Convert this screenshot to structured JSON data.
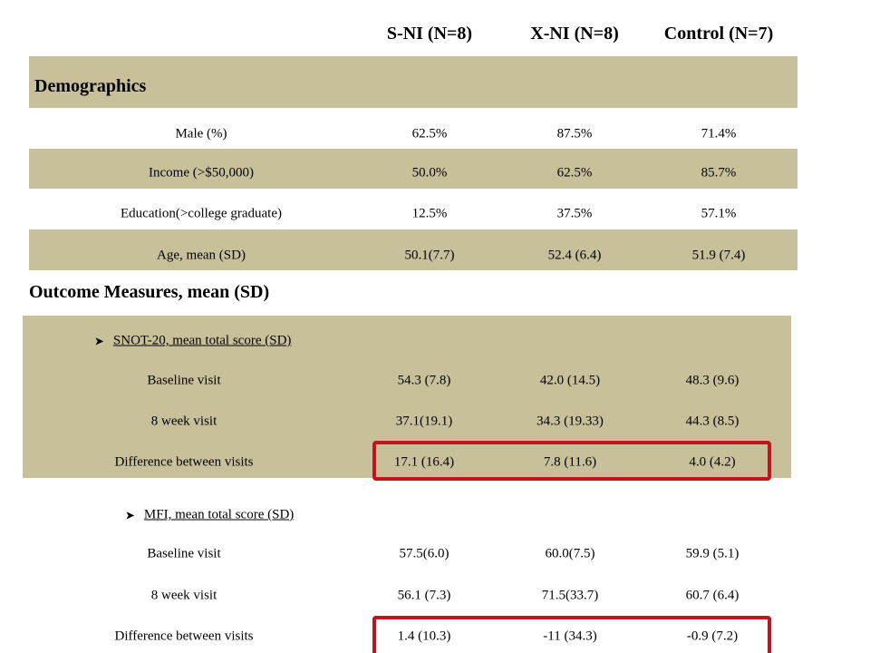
{
  "columns": [
    "S-NI (N=8)",
    "X-NI (N=8)",
    "Control (N=7)"
  ],
  "demographics": {
    "title": "Demographics",
    "rows": [
      {
        "label": "Male (%)",
        "values": [
          "62.5%",
          "87.5%",
          "71.4%"
        ]
      },
      {
        "label": "Income (>$50,000)",
        "values": [
          "50.0%",
          "62.5%",
          "85.7%"
        ]
      },
      {
        "label": "Education(>college graduate)",
        "values": [
          "12.5%",
          "37.5%",
          "57.1%"
        ]
      },
      {
        "label": "Age, mean (SD)",
        "values": [
          "50.1(7.7)",
          "52.4 (6.4)",
          "51.9 (7.4)"
        ]
      }
    ]
  },
  "outcomes": {
    "title": "Outcome Measures, mean (SD)",
    "snot": {
      "heading": "SNOT-20, mean total score  (SD)",
      "rows": [
        {
          "label": "Baseline visit",
          "values": [
            "54.3 (7.8)",
            "42.0 (14.5)",
            "48.3 (9.6)"
          ]
        },
        {
          "label": "8 week visit",
          "values": [
            "37.1(19.1)",
            "34.3 (19.33)",
            "44.3 (8.5)"
          ]
        },
        {
          "label": "Difference between visits",
          "values": [
            "17.1 (16.4)",
            "7.8 (11.6)",
            "4.0 (4.2)"
          ]
        }
      ]
    },
    "mfi": {
      "heading": "MFI, mean total score  (SD)",
      "rows": [
        {
          "label": "Baseline visit",
          "values": [
            "57.5(6.0)",
            "60.0(7.5)",
            "59.9 (5.1)"
          ]
        },
        {
          "label": "8 week visit",
          "values": [
            "56.1 (7.3)",
            "71.5(33.7)",
            "60.7 (6.4)"
          ]
        },
        {
          "label": "Difference between visits",
          "values": [
            "1.4 (10.3)",
            "-11 (34.3)",
            "-0.9 (7.2)"
          ]
        }
      ]
    }
  },
  "colors": {
    "band": "#c8c09b",
    "highlight": "#c0141e"
  },
  "icons": {
    "bullet": "arrow-bullet-icon"
  }
}
